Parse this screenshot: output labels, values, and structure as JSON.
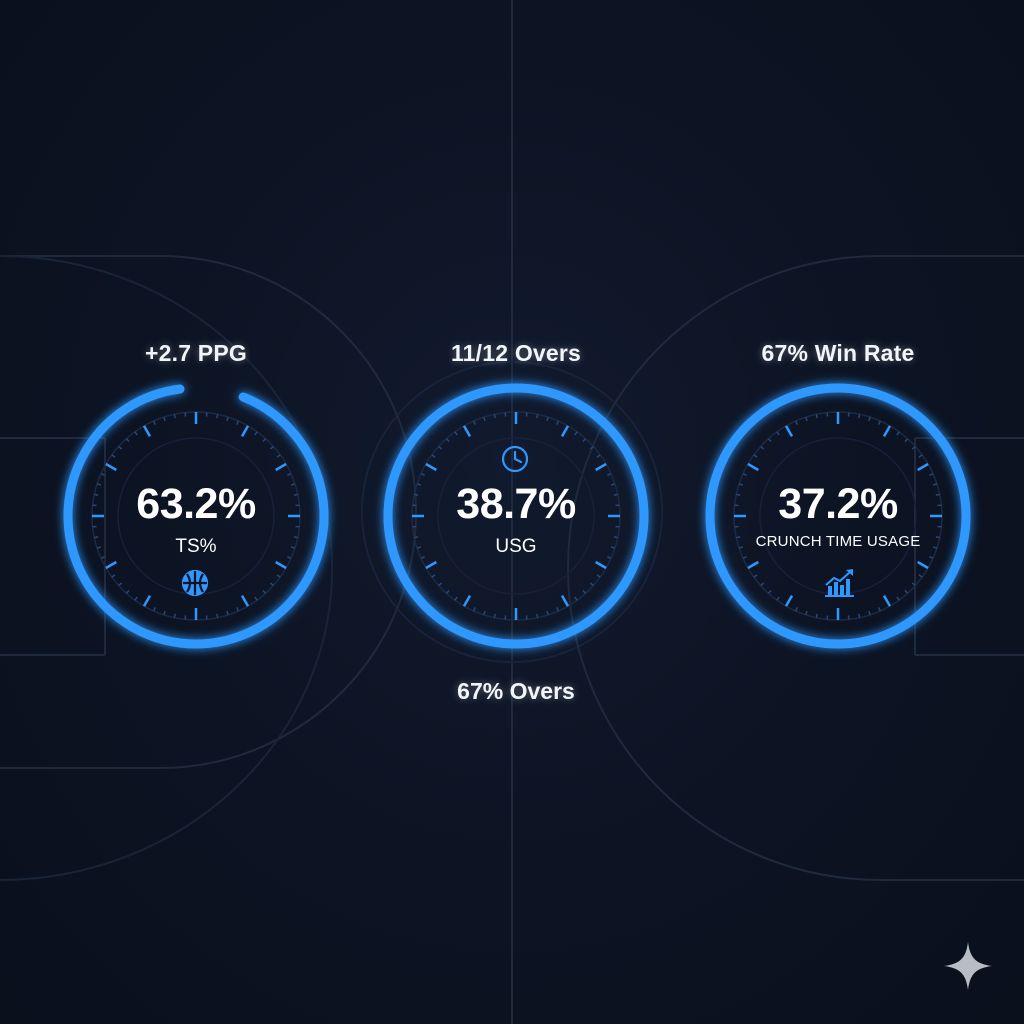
{
  "gauges": [
    {
      "top_label": "+2.7 PPG",
      "value": "63.2%",
      "metric": "TS%",
      "icon": "basketball-icon",
      "ring_fill": 0.92
    },
    {
      "top_label": "11/12 Overs",
      "value": "38.7%",
      "metric": "USG",
      "icon": "clock-icon",
      "bottom_label": "67% Overs",
      "ring_fill": 1.0
    },
    {
      "top_label": "67% Win Rate",
      "value": "37.2%",
      "metric": "CRUNCH TIME USAGE",
      "icon": "trending-chart-icon",
      "ring_fill": 1.0
    }
  ],
  "colors": {
    "accent": "#2e98ff",
    "background": "#0c1322",
    "text": "#ffffff",
    "court_lines": "#1f2a3d"
  },
  "watermark_icon": "sparkle-icon"
}
